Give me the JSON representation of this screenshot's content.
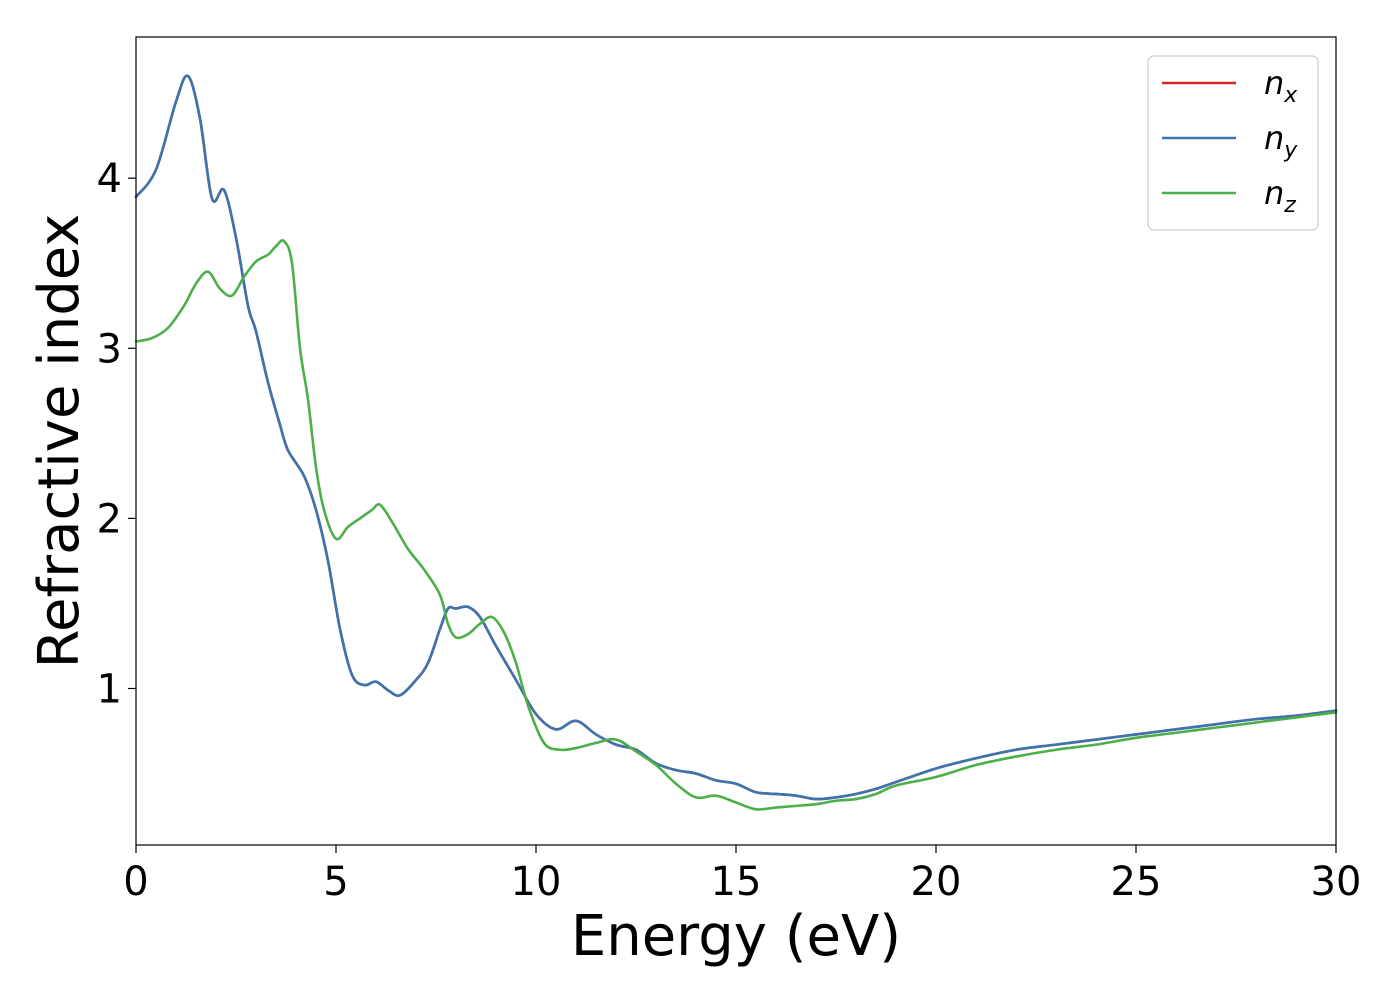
{
  "chart_data": {
    "type": "line",
    "title": "",
    "xlabel": "Energy (eV)",
    "ylabel": "Refractive index",
    "xlim": [
      0,
      30
    ],
    "ylim": [
      0.08,
      4.83
    ],
    "xticks": [
      0,
      5,
      10,
      15,
      20,
      25,
      30
    ],
    "xtick_labels": [
      "0",
      "5",
      "10",
      "15",
      "20",
      "25",
      "30"
    ],
    "yticks": [
      1,
      2,
      3,
      4
    ],
    "ytick_labels": [
      "1",
      "2",
      "3",
      "4"
    ],
    "grid": false,
    "legend_position": "top-right",
    "series": [
      {
        "name": "n",
        "subscript": "x",
        "color": "#d62728",
        "x": [
          0,
          0.5,
          1.0,
          1.3,
          1.6,
          1.9,
          2.2,
          2.5,
          2.8,
          3.0,
          3.3,
          3.6,
          3.8,
          4.2,
          4.5,
          4.8,
          5.1,
          5.4,
          5.7,
          6.0,
          6.3,
          6.6,
          7.0,
          7.3,
          7.6,
          7.8,
          8.0,
          8.3,
          8.6,
          9.0,
          9.5,
          10.0,
          10.5,
          11.0,
          11.5,
          12.0,
          12.5,
          13.0,
          13.5,
          14.0,
          14.5,
          15.0,
          15.5,
          16.0,
          16.5,
          17.0,
          17.5,
          18.0,
          18.5,
          19.0,
          20.0,
          21.0,
          22.0,
          23.0,
          24.0,
          25.0,
          26.0,
          27.0,
          28.0,
          29.0,
          30.0
        ],
        "y": [
          3.89,
          4.05,
          4.45,
          4.6,
          4.35,
          3.88,
          3.93,
          3.65,
          3.25,
          3.1,
          2.8,
          2.55,
          2.4,
          2.25,
          2.05,
          1.75,
          1.35,
          1.08,
          1.02,
          1.04,
          0.99,
          0.96,
          1.05,
          1.15,
          1.35,
          1.47,
          1.47,
          1.48,
          1.42,
          1.25,
          1.05,
          0.85,
          0.76,
          0.81,
          0.73,
          0.67,
          0.64,
          0.56,
          0.52,
          0.5,
          0.46,
          0.44,
          0.39,
          0.38,
          0.37,
          0.35,
          0.36,
          0.38,
          0.41,
          0.45,
          0.53,
          0.59,
          0.64,
          0.67,
          0.7,
          0.73,
          0.76,
          0.79,
          0.82,
          0.84,
          0.87
        ]
      },
      {
        "name": "n",
        "subscript": "y",
        "color": "#3b75af",
        "x": [
          0,
          0.5,
          1.0,
          1.3,
          1.6,
          1.9,
          2.2,
          2.5,
          2.8,
          3.0,
          3.3,
          3.6,
          3.8,
          4.2,
          4.5,
          4.8,
          5.1,
          5.4,
          5.7,
          6.0,
          6.3,
          6.6,
          7.0,
          7.3,
          7.6,
          7.8,
          8.0,
          8.3,
          8.6,
          9.0,
          9.5,
          10.0,
          10.5,
          11.0,
          11.5,
          12.0,
          12.5,
          13.0,
          13.5,
          14.0,
          14.5,
          15.0,
          15.5,
          16.0,
          16.5,
          17.0,
          17.5,
          18.0,
          18.5,
          19.0,
          20.0,
          21.0,
          22.0,
          23.0,
          24.0,
          25.0,
          26.0,
          27.0,
          28.0,
          29.0,
          30.0
        ],
        "y": [
          3.89,
          4.05,
          4.45,
          4.6,
          4.35,
          3.88,
          3.93,
          3.65,
          3.25,
          3.1,
          2.8,
          2.55,
          2.4,
          2.25,
          2.05,
          1.75,
          1.35,
          1.08,
          1.02,
          1.04,
          0.99,
          0.96,
          1.05,
          1.15,
          1.35,
          1.47,
          1.47,
          1.48,
          1.42,
          1.25,
          1.05,
          0.85,
          0.76,
          0.81,
          0.73,
          0.67,
          0.64,
          0.56,
          0.52,
          0.5,
          0.46,
          0.44,
          0.39,
          0.38,
          0.37,
          0.35,
          0.36,
          0.38,
          0.41,
          0.45,
          0.53,
          0.59,
          0.64,
          0.67,
          0.7,
          0.73,
          0.76,
          0.79,
          0.82,
          0.84,
          0.87
        ]
      },
      {
        "name": "n",
        "subscript": "z",
        "color": "#4daf4a",
        "x": [
          0,
          0.4,
          0.8,
          1.2,
          1.5,
          1.8,
          2.1,
          2.4,
          2.7,
          3.0,
          3.3,
          3.5,
          3.7,
          3.9,
          4.1,
          4.3,
          4.5,
          4.7,
          5.0,
          5.3,
          5.6,
          5.9,
          6.1,
          6.4,
          6.8,
          7.2,
          7.6,
          7.8,
          8.0,
          8.3,
          8.6,
          8.9,
          9.2,
          9.5,
          9.8,
          10.2,
          10.6,
          11.0,
          11.5,
          12.0,
          12.5,
          13.0,
          13.5,
          14.0,
          14.5,
          15.0,
          15.5,
          16.0,
          16.5,
          17.0,
          17.5,
          18.0,
          18.5,
          19.0,
          20.0,
          21.0,
          22.0,
          23.0,
          24.0,
          25.0,
          26.0,
          27.0,
          28.0,
          29.0,
          30.0
        ],
        "y": [
          3.04,
          3.06,
          3.12,
          3.25,
          3.38,
          3.45,
          3.35,
          3.31,
          3.42,
          3.51,
          3.55,
          3.6,
          3.63,
          3.5,
          3.0,
          2.7,
          2.3,
          2.05,
          1.88,
          1.95,
          2.0,
          2.05,
          2.08,
          1.98,
          1.82,
          1.7,
          1.55,
          1.38,
          1.3,
          1.32,
          1.38,
          1.42,
          1.33,
          1.15,
          0.9,
          0.68,
          0.64,
          0.65,
          0.68,
          0.7,
          0.63,
          0.55,
          0.44,
          0.36,
          0.37,
          0.33,
          0.29,
          0.3,
          0.31,
          0.32,
          0.34,
          0.35,
          0.38,
          0.43,
          0.48,
          0.55,
          0.6,
          0.64,
          0.67,
          0.71,
          0.74,
          0.77,
          0.8,
          0.83,
          0.86
        ]
      }
    ]
  }
}
